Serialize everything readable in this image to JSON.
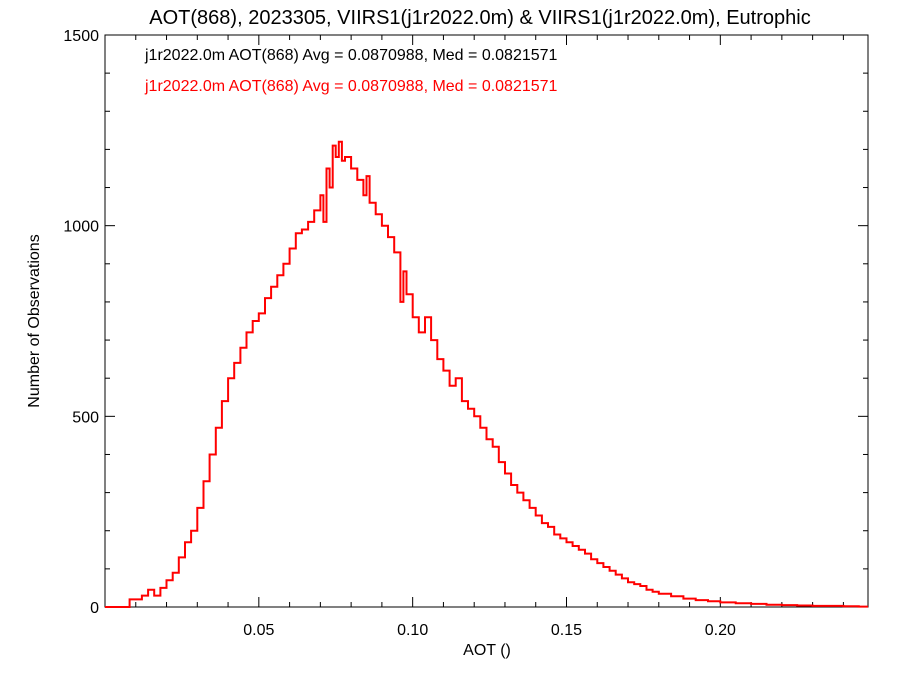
{
  "chart_data": {
    "type": "histogram",
    "title": "AOT(868), 2023305, VIIRS1(j1r2022.0m) & VIIRS1(j1r2022.0m), Eutrophic",
    "xlabel": "AOT ()",
    "ylabel": "Number of Observations",
    "xlim": [
      0.0,
      0.248
    ],
    "ylim": [
      0,
      1500
    ],
    "x_ticks": [
      0.05,
      0.1,
      0.15,
      0.2
    ],
    "x_tick_labels": [
      "0.05",
      "0.10",
      "0.15",
      "0.20"
    ],
    "y_ticks": [
      0,
      500,
      1000,
      1500
    ],
    "y_tick_labels": [
      "0",
      "500",
      "1000",
      "1500"
    ],
    "grid": false,
    "annotations": [
      {
        "text": "j1r2022.0m AOT(868) Avg = 0.0870988, Med = 0.0821571",
        "color": "#000000"
      },
      {
        "text": "j1r2022.0m AOT(868) Avg = 0.0870988, Med = 0.0821571",
        "color": "#ff0000"
      }
    ],
    "series": [
      {
        "color": "#ff0000",
        "points": [
          [
            0.0,
            0
          ],
          [
            0.005,
            0
          ],
          [
            0.008,
            20
          ],
          [
            0.01,
            20
          ],
          [
            0.012,
            30
          ],
          [
            0.014,
            45
          ],
          [
            0.016,
            30
          ],
          [
            0.018,
            50
          ],
          [
            0.02,
            70
          ],
          [
            0.022,
            90
          ],
          [
            0.024,
            130
          ],
          [
            0.026,
            170
          ],
          [
            0.028,
            200
          ],
          [
            0.03,
            260
          ],
          [
            0.032,
            330
          ],
          [
            0.034,
            400
          ],
          [
            0.036,
            470
          ],
          [
            0.038,
            540
          ],
          [
            0.04,
            600
          ],
          [
            0.042,
            640
          ],
          [
            0.044,
            680
          ],
          [
            0.046,
            720
          ],
          [
            0.048,
            750
          ],
          [
            0.05,
            770
          ],
          [
            0.052,
            810
          ],
          [
            0.054,
            840
          ],
          [
            0.056,
            870
          ],
          [
            0.058,
            900
          ],
          [
            0.06,
            940
          ],
          [
            0.062,
            980
          ],
          [
            0.064,
            990
          ],
          [
            0.066,
            1010
          ],
          [
            0.068,
            1040
          ],
          [
            0.07,
            1080
          ],
          [
            0.071,
            1010
          ],
          [
            0.072,
            1150
          ],
          [
            0.073,
            1100
          ],
          [
            0.074,
            1210
          ],
          [
            0.075,
            1180
          ],
          [
            0.076,
            1220
          ],
          [
            0.077,
            1170
          ],
          [
            0.078,
            1180
          ],
          [
            0.08,
            1150
          ],
          [
            0.082,
            1120
          ],
          [
            0.084,
            1080
          ],
          [
            0.085,
            1130
          ],
          [
            0.086,
            1060
          ],
          [
            0.088,
            1030
          ],
          [
            0.09,
            1000
          ],
          [
            0.092,
            970
          ],
          [
            0.094,
            930
          ],
          [
            0.096,
            800
          ],
          [
            0.097,
            880
          ],
          [
            0.098,
            820
          ],
          [
            0.1,
            760
          ],
          [
            0.102,
            720
          ],
          [
            0.104,
            760
          ],
          [
            0.106,
            700
          ],
          [
            0.108,
            650
          ],
          [
            0.11,
            620
          ],
          [
            0.112,
            580
          ],
          [
            0.114,
            600
          ],
          [
            0.116,
            540
          ],
          [
            0.118,
            520
          ],
          [
            0.12,
            500
          ],
          [
            0.122,
            470
          ],
          [
            0.124,
            440
          ],
          [
            0.126,
            420
          ],
          [
            0.128,
            380
          ],
          [
            0.13,
            350
          ],
          [
            0.132,
            320
          ],
          [
            0.134,
            300
          ],
          [
            0.136,
            280
          ],
          [
            0.138,
            260
          ],
          [
            0.14,
            240
          ],
          [
            0.142,
            220
          ],
          [
            0.144,
            210
          ],
          [
            0.146,
            190
          ],
          [
            0.148,
            180
          ],
          [
            0.15,
            170
          ],
          [
            0.152,
            160
          ],
          [
            0.154,
            150
          ],
          [
            0.156,
            140
          ],
          [
            0.158,
            125
          ],
          [
            0.16,
            115
          ],
          [
            0.162,
            105
          ],
          [
            0.164,
            95
          ],
          [
            0.166,
            85
          ],
          [
            0.168,
            75
          ],
          [
            0.17,
            65
          ],
          [
            0.172,
            60
          ],
          [
            0.174,
            55
          ],
          [
            0.176,
            45
          ],
          [
            0.178,
            40
          ],
          [
            0.18,
            35
          ],
          [
            0.184,
            28
          ],
          [
            0.188,
            22
          ],
          [
            0.192,
            18
          ],
          [
            0.196,
            15
          ],
          [
            0.2,
            12
          ],
          [
            0.205,
            10
          ],
          [
            0.21,
            8
          ],
          [
            0.215,
            6
          ],
          [
            0.22,
            5
          ],
          [
            0.225,
            4
          ],
          [
            0.23,
            3
          ],
          [
            0.235,
            3
          ],
          [
            0.24,
            2
          ],
          [
            0.245,
            1
          ]
        ]
      }
    ]
  }
}
